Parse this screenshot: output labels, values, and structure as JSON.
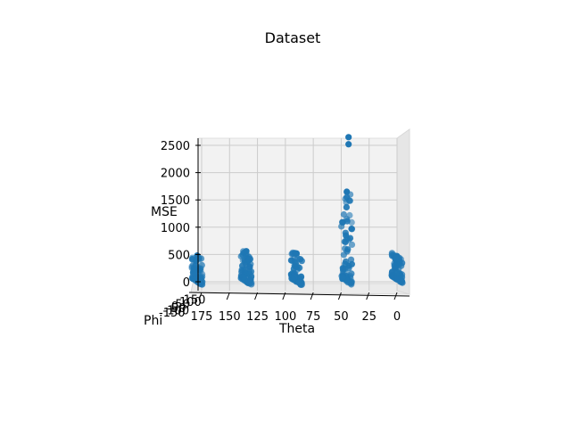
{
  "chart_data": {
    "type": "scatter",
    "projection": "3d",
    "title": "Dataset",
    "xlabel": "Theta",
    "ylabel": "Phi",
    "zlabel": "MSE",
    "x_ticks": [
      "175",
      "150",
      "125",
      "100",
      "75",
      "50",
      "25",
      "0"
    ],
    "x_tick_values": [
      175,
      150,
      125,
      100,
      75,
      50,
      25,
      0
    ],
    "z_ticks": [
      "0",
      "500",
      "1000",
      "1500",
      "2000",
      "2500"
    ],
    "z_tick_values": [
      0,
      500,
      1000,
      1500,
      2000,
      2500
    ],
    "phi_ticks": [
      "-150",
      "-100",
      "-50",
      "0",
      "50",
      "100",
      "150"
    ],
    "xlim": [
      180,
      -4
    ],
    "zlim": [
      -100,
      2700
    ],
    "grid": true,
    "marker_color": "#1f77b4",
    "pane_color": "#f2f2f2",
    "grid_color": "#cccccc",
    "columns": [
      {
        "theta": 179,
        "mse_min": 0,
        "mse_max": 480,
        "extra": []
      },
      {
        "theta": 135,
        "mse_min": 0,
        "mse_max": 560,
        "extra": []
      },
      {
        "theta": 90,
        "mse_min": 0,
        "mse_max": 520,
        "extra": []
      },
      {
        "theta": 45,
        "mse_min": 0,
        "mse_max": 1650,
        "extra": [
          2520,
          2650
        ]
      },
      {
        "theta": 0,
        "mse_min": 40,
        "mse_max": 470,
        "extra": []
      }
    ]
  }
}
